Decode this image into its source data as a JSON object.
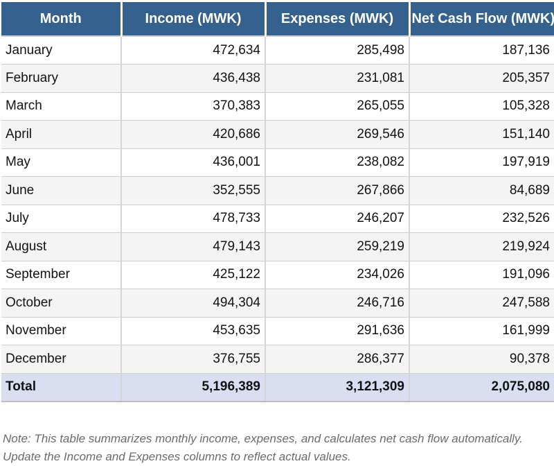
{
  "table": {
    "columns": [
      "Month",
      "Income (MWK)",
      "Expenses (MWK)",
      "Net Cash Flow (MWK)"
    ],
    "rows": [
      {
        "month": "January",
        "income": "472,634",
        "expenses": "285,498",
        "net": "187,136"
      },
      {
        "month": "February",
        "income": "436,438",
        "expenses": "231,081",
        "net": "205,357"
      },
      {
        "month": "March",
        "income": "370,383",
        "expenses": "265,055",
        "net": "105,328"
      },
      {
        "month": "April",
        "income": "420,686",
        "expenses": "269,546",
        "net": "151,140"
      },
      {
        "month": "May",
        "income": "436,001",
        "expenses": "238,082",
        "net": "197,919"
      },
      {
        "month": "June",
        "income": "352,555",
        "expenses": "267,866",
        "net": "84,689"
      },
      {
        "month": "July",
        "income": "478,733",
        "expenses": "246,207",
        "net": "232,526"
      },
      {
        "month": "August",
        "income": "479,143",
        "expenses": "259,219",
        "net": "219,924"
      },
      {
        "month": "September",
        "income": "425,122",
        "expenses": "234,026",
        "net": "191,096"
      },
      {
        "month": "October",
        "income": "494,304",
        "expenses": "246,716",
        "net": "247,588"
      },
      {
        "month": "November",
        "income": "453,635",
        "expenses": "291,636",
        "net": "161,999"
      },
      {
        "month": "December",
        "income": "376,755",
        "expenses": "286,377",
        "net": "90,378"
      }
    ],
    "total": {
      "label": "Total",
      "income": "5,196,389",
      "expenses": "3,121,309",
      "net": "2,075,080"
    }
  },
  "note": "Note: This table summarizes monthly income, expenses, and calculates net cash flow automatically. Update the Income and Expenses columns to reflect actual values.",
  "colors": {
    "header_bg": "#35618E",
    "header_text": "#FFFFFF",
    "stripe_bg": "#F4F4F4",
    "total_bg": "#D9DFF1",
    "grid_border": "#D5D5D5",
    "note_text": "#6A6A6A"
  }
}
